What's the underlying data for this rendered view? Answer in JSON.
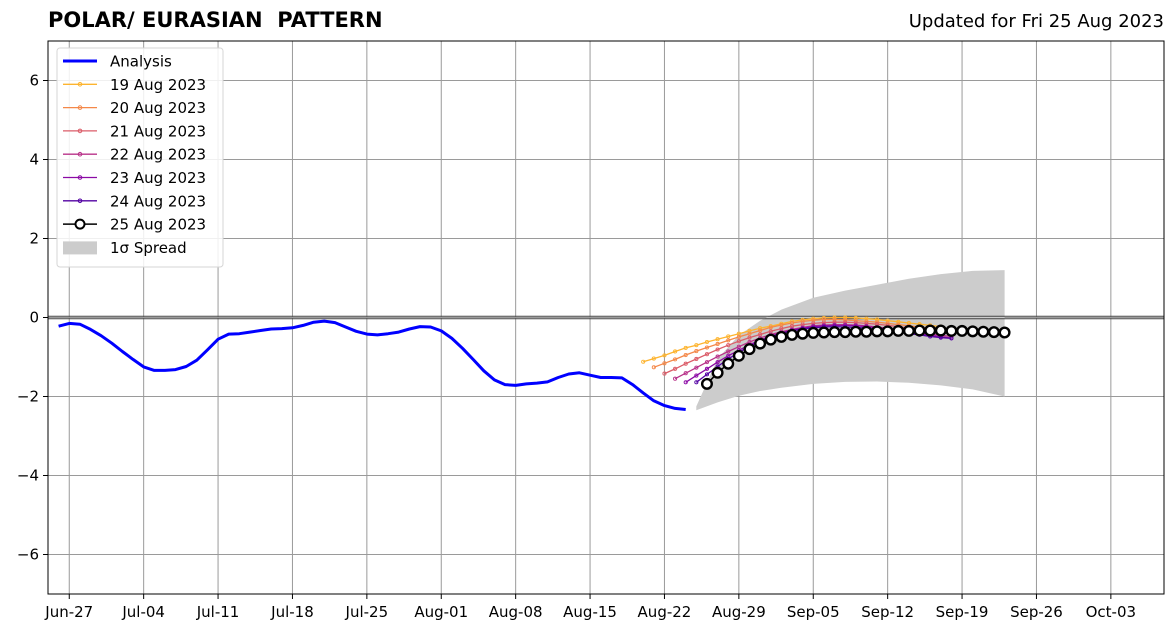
{
  "header": {
    "title": "POLAR/ EURASIAN  PATTERN",
    "updated": "Updated for Fri 25 Aug 2023"
  },
  "chart_data": {
    "type": "line",
    "title": "POLAR/ EURASIAN  PATTERN",
    "subtitle": "Updated for Fri 25 Aug 2023",
    "xlabel": "",
    "ylabel": "",
    "xlim": [
      "2023-06-25",
      "2023-10-08"
    ],
    "ylim": [
      -7,
      7
    ],
    "grid": true,
    "legend_position": "top-left",
    "x_ticks": [
      "Jun-27",
      "Jul-04",
      "Jul-11",
      "Jul-18",
      "Jul-25",
      "Aug-01",
      "Aug-08",
      "Aug-15",
      "Aug-22",
      "Aug-29",
      "Sep-05",
      "Sep-12",
      "Sep-19",
      "Sep-26",
      "Oct-03"
    ],
    "y_ticks": [
      "6",
      "4",
      "2",
      "0",
      "−2",
      "−4",
      "−6"
    ],
    "analysis": {
      "name": "Analysis",
      "color": "#0000ff",
      "x": [
        "2023-06-26",
        "2023-06-27",
        "2023-06-28",
        "2023-06-29",
        "2023-06-30",
        "2023-07-01",
        "2023-07-02",
        "2023-07-03",
        "2023-07-04",
        "2023-07-05",
        "2023-07-06",
        "2023-07-07",
        "2023-07-08",
        "2023-07-09",
        "2023-07-10",
        "2023-07-11",
        "2023-07-12",
        "2023-07-13",
        "2023-07-14",
        "2023-07-15",
        "2023-07-16",
        "2023-07-17",
        "2023-07-18",
        "2023-07-19",
        "2023-07-20",
        "2023-07-21",
        "2023-07-22",
        "2023-07-23",
        "2023-07-24",
        "2023-07-25",
        "2023-07-26",
        "2023-07-27",
        "2023-07-28",
        "2023-07-29",
        "2023-07-30",
        "2023-07-31",
        "2023-08-01",
        "2023-08-02",
        "2023-08-03",
        "2023-08-04",
        "2023-08-05",
        "2023-08-06",
        "2023-08-07",
        "2023-08-08",
        "2023-08-09",
        "2023-08-10",
        "2023-08-11",
        "2023-08-12",
        "2023-08-13",
        "2023-08-14",
        "2023-08-15",
        "2023-08-16",
        "2023-08-17",
        "2023-08-18",
        "2023-08-19",
        "2023-08-20",
        "2023-08-21",
        "2023-08-22",
        "2023-08-23",
        "2023-08-24"
      ],
      "values": [
        -0.22,
        -0.15,
        -0.17,
        -0.3,
        -0.46,
        -0.65,
        -0.86,
        -1.06,
        -1.25,
        -1.34,
        -1.34,
        -1.32,
        -1.24,
        -1.08,
        -0.82,
        -0.55,
        -0.42,
        -0.41,
        -0.37,
        -0.33,
        -0.29,
        -0.28,
        -0.26,
        -0.2,
        -0.12,
        -0.09,
        -0.13,
        -0.24,
        -0.35,
        -0.42,
        -0.44,
        -0.41,
        -0.37,
        -0.29,
        -0.23,
        -0.24,
        -0.34,
        -0.53,
        -0.78,
        -1.06,
        -1.35,
        -1.58,
        -1.7,
        -1.72,
        -1.68,
        -1.66,
        -1.63,
        -1.52,
        -1.43,
        -1.4,
        -1.46,
        -1.52,
        -1.52,
        -1.53,
        -1.7,
        -1.91,
        -2.11,
        -2.23,
        -2.3,
        -2.33
      ]
    },
    "forecast_step_days": 1,
    "forecasts": [
      {
        "name": "19 Aug 2023",
        "color": "#fdb42f",
        "start": "2023-08-20",
        "values": [
          -1.12,
          -1.04,
          -0.96,
          -0.86,
          -0.77,
          -0.7,
          -0.62,
          -0.55,
          -0.48,
          -0.41,
          -0.34,
          -0.27,
          -0.22,
          -0.16,
          -0.1,
          -0.06,
          -0.03,
          -0.01,
          0.0,
          0.0,
          -0.01,
          -0.03,
          -0.05,
          -0.08,
          -0.11,
          -0.14,
          -0.17,
          -0.2,
          -0.23
        ]
      },
      {
        "name": "20 Aug 2023",
        "color": "#f48849",
        "start": "2023-08-21",
        "values": [
          -1.26,
          -1.16,
          -1.06,
          -0.95,
          -0.85,
          -0.76,
          -0.67,
          -0.58,
          -0.49,
          -0.41,
          -0.33,
          -0.25,
          -0.19,
          -0.14,
          -0.1,
          -0.07,
          -0.05,
          -0.05,
          -0.06,
          -0.08,
          -0.1,
          -0.12,
          -0.15,
          -0.18,
          -0.21,
          -0.24,
          -0.27,
          -0.3
        ]
      },
      {
        "name": "21 Aug 2023",
        "color": "#db5c68",
        "start": "2023-08-22",
        "values": [
          -1.42,
          -1.3,
          -1.17,
          -1.05,
          -0.93,
          -0.81,
          -0.7,
          -0.6,
          -0.51,
          -0.43,
          -0.35,
          -0.28,
          -0.22,
          -0.18,
          -0.15,
          -0.13,
          -0.12,
          -0.12,
          -0.13,
          -0.15,
          -0.17,
          -0.2,
          -0.23,
          -0.27,
          -0.3,
          -0.34,
          -0.38,
          -0.42
        ]
      },
      {
        "name": "22 Aug 2023",
        "color": "#b83289",
        "start": "2023-08-23",
        "values": [
          -1.55,
          -1.41,
          -1.27,
          -1.13,
          -0.99,
          -0.86,
          -0.74,
          -0.62,
          -0.52,
          -0.43,
          -0.36,
          -0.3,
          -0.25,
          -0.21,
          -0.19,
          -0.18,
          -0.18,
          -0.19,
          -0.21,
          -0.24,
          -0.27,
          -0.3,
          -0.34,
          -0.38,
          -0.42,
          -0.45,
          -0.48
        ]
      },
      {
        "name": "23 Aug 2023",
        "color": "#8b0aa5",
        "start": "2023-08-24",
        "values": [
          -1.64,
          -1.47,
          -1.3,
          -1.13,
          -0.97,
          -0.83,
          -0.69,
          -0.57,
          -0.47,
          -0.39,
          -0.32,
          -0.27,
          -0.23,
          -0.21,
          -0.2,
          -0.2,
          -0.21,
          -0.23,
          -0.26,
          -0.29,
          -0.33,
          -0.37,
          -0.41,
          -0.45,
          -0.49,
          -0.52
        ]
      },
      {
        "name": "24 Aug 2023",
        "color": "#5302a3",
        "start": "2023-08-25",
        "values": [
          -1.64,
          -1.44,
          -1.24,
          -1.05,
          -0.88,
          -0.73,
          -0.6,
          -0.49,
          -0.4,
          -0.34,
          -0.29,
          -0.26,
          -0.24,
          -0.23,
          -0.24,
          -0.25,
          -0.27,
          -0.3,
          -0.33,
          -0.37,
          -0.41,
          -0.44,
          -0.48,
          -0.51,
          -0.53
        ]
      },
      {
        "name": "25 Aug 2023",
        "color": "#000000",
        "start": "2023-08-26",
        "values": [
          -1.68,
          -1.4,
          -1.17,
          -0.97,
          -0.8,
          -0.66,
          -0.56,
          -0.49,
          -0.44,
          -0.41,
          -0.39,
          -0.38,
          -0.37,
          -0.37,
          -0.36,
          -0.36,
          -0.35,
          -0.35,
          -0.34,
          -0.34,
          -0.33,
          -0.33,
          -0.33,
          -0.34,
          -0.34,
          -0.35,
          -0.36,
          -0.37,
          -0.38
        ]
      }
    ],
    "spread": {
      "name": "1σ Spread",
      "color": "#cccccc",
      "x": [
        "2023-08-25",
        "2023-08-27",
        "2023-08-29",
        "2023-08-31",
        "2023-09-02",
        "2023-09-05",
        "2023-09-08",
        "2023-09-11",
        "2023-09-14",
        "2023-09-17",
        "2023-09-20",
        "2023-09-23"
      ],
      "upper": [
        -2.25,
        -1.05,
        -0.45,
        -0.08,
        0.2,
        0.5,
        0.68,
        0.83,
        0.98,
        1.1,
        1.18,
        1.2
      ],
      "lower": [
        -2.35,
        -2.15,
        -1.98,
        -1.86,
        -1.78,
        -1.68,
        -1.63,
        -1.62,
        -1.65,
        -1.72,
        -1.82,
        -2.0
      ]
    }
  },
  "legend": {
    "items": [
      {
        "label": "Analysis",
        "color": "#0000ff",
        "kind": "thick-line"
      },
      {
        "label": "19 Aug 2023",
        "color": "#fdb42f",
        "kind": "dot-line"
      },
      {
        "label": "20 Aug 2023",
        "color": "#f48849",
        "kind": "dot-line"
      },
      {
        "label": "21 Aug 2023",
        "color": "#db5c68",
        "kind": "dot-line"
      },
      {
        "label": "22 Aug 2023",
        "color": "#b83289",
        "kind": "dot-line"
      },
      {
        "label": "23 Aug 2023",
        "color": "#8b0aa5",
        "kind": "dot-line"
      },
      {
        "label": "24 Aug 2023",
        "color": "#5302a3",
        "kind": "dot-line"
      },
      {
        "label": "25 Aug 2023",
        "color": "#000000",
        "kind": "circle-line"
      },
      {
        "label": "1σ Spread",
        "color": "#cccccc",
        "kind": "patch"
      }
    ]
  }
}
